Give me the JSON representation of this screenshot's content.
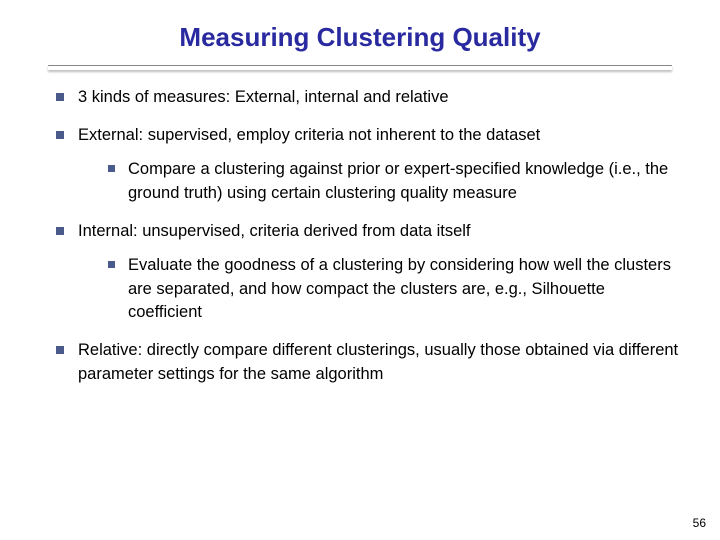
{
  "title": {
    "text": "Measuring Clustering Quality",
    "color": "#2a2aa0",
    "fontsize": 26,
    "fontweight": "bold"
  },
  "underline": {
    "color_top": "#888888",
    "shadow_color": "rgba(0,0,0,0.25)"
  },
  "bullet": {
    "color": "#4a5a8a",
    "size_l1": 8,
    "size_l2": 7
  },
  "body": {
    "fontsize": 16.5,
    "line_height": 1.45,
    "text_color": "#000000"
  },
  "items": [
    {
      "text": "3 kinds of measures: External, internal and relative",
      "children": []
    },
    {
      "text": "External: supervised, employ criteria not inherent to the dataset",
      "children": [
        {
          "text": "Compare a clustering against prior or expert-specified knowledge (i.e., the ground truth) using certain clustering quality measure"
        }
      ]
    },
    {
      "text": "Internal: unsupervised, criteria derived from data itself",
      "children": [
        {
          "text": "Evaluate the goodness of a clustering by considering how well the clusters are separated, and how compact the clusters are, e.g., Silhouette coefficient"
        }
      ]
    },
    {
      "text": "Relative: directly compare different clusterings, usually those obtained via different parameter settings for the same algorithm",
      "children": []
    }
  ],
  "page_number": "56"
}
